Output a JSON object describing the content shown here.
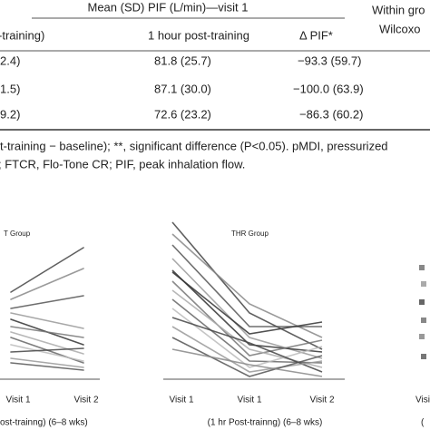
{
  "table": {
    "header": {
      "group_title": "Mean (SD) PIF (L/min)—visit 1",
      "columns": [
        "-training)",
        "1 hour post-training",
        "Δ PIF*"
      ],
      "side_title": [
        "Within gro",
        "Wilcoxo"
      ]
    },
    "rows": [
      [
        "2.4)",
        "81.8 (25.7)",
        "−93.3 (59.7)"
      ],
      [
        "1.5)",
        "87.1 (30.0)",
        "−100.0 (63.9)"
      ],
      [
        "9.2)",
        "72.6 (23.2)",
        "−86.3 (60.2)"
      ]
    ],
    "footnotes": [
      "t-training − baseline); **, significant difference (P<0.05). pMDI, pressurized",
      "; FTCR, Flo-Tone CR; PIF, peak inhalation flow."
    ]
  },
  "figure": {
    "panels": [
      {
        "title": "T Group",
        "x_labels": [
          "Visit 1",
          "Visit 2"
        ],
        "axis_caption": "ost-trainng) (6–8 wks)"
      },
      {
        "title": "THR Group",
        "x_labels": [
          "Visit 1",
          "Visit 1",
          "Visit 2"
        ],
        "axis_caption": "(1 hr Post-trainng) (6–8 wks)"
      },
      {
        "x_labels": [
          "Visi"
        ],
        "axis_caption": "("
      }
    ]
  }
}
